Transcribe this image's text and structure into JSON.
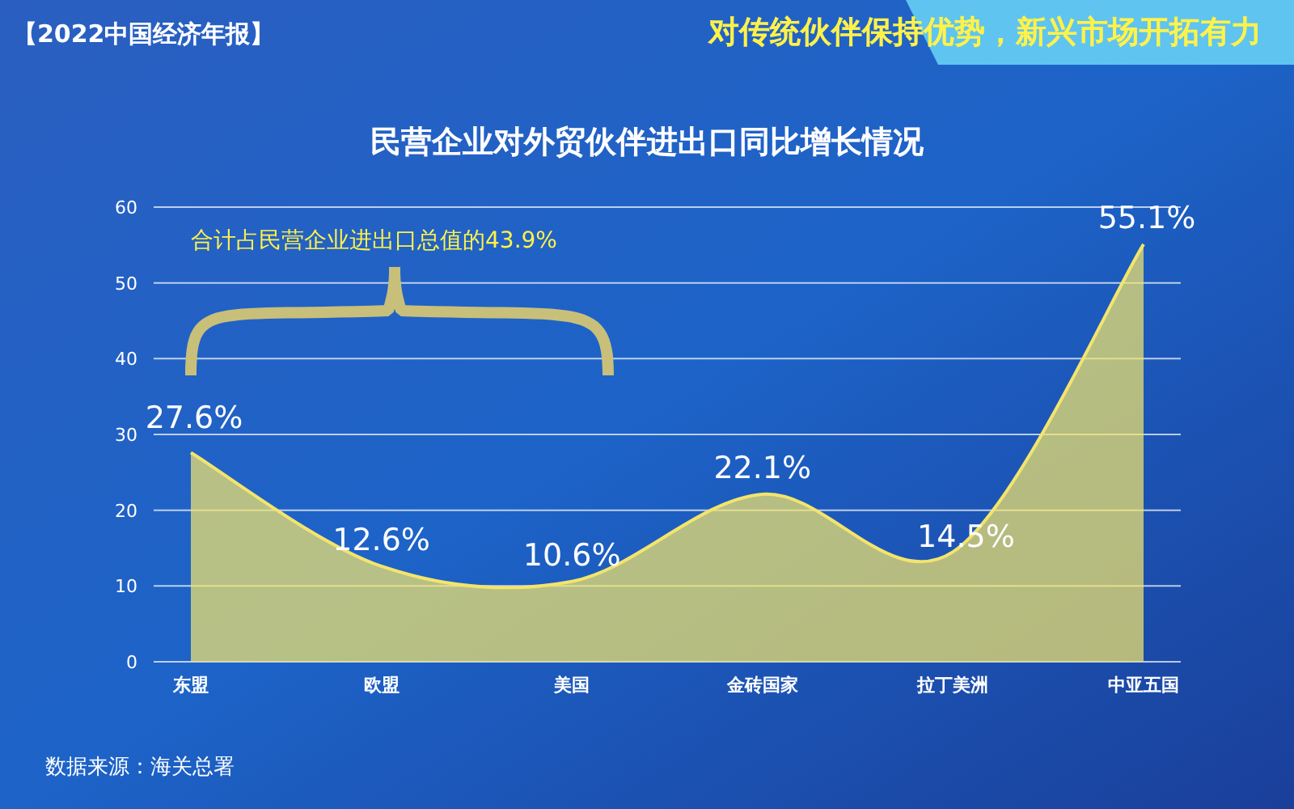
{
  "chart_data": {
    "type": "area",
    "title": "民营企业对外贸伙伴进出口同比增长情况",
    "subtitle": "对传统伙伴保持优势，新兴市场开拓有力",
    "categories": [
      "东盟",
      "欧盟",
      "美国",
      "金砖国家",
      "拉丁美洲",
      "中亚五国"
    ],
    "series": [
      {
        "color": "#f3e46c",
        "values": [
          27.6,
          12.6,
          10.6,
          22.1,
          14.5,
          55.1
        ],
        "value_labels": [
          "27.6%",
          "12.6%",
          "10.6%",
          "22.1%",
          "14.5%",
          "55.1%"
        ]
      }
    ],
    "ylim": [
      0,
      60
    ],
    "yticks": [
      0,
      10,
      20,
      30,
      40,
      50,
      60
    ],
    "grid": "y",
    "annotations": [
      "【2022中国经济年报】",
      "合计占民营企业进出口总值的43.9%",
      "数据来源：海关总署"
    ]
  }
}
